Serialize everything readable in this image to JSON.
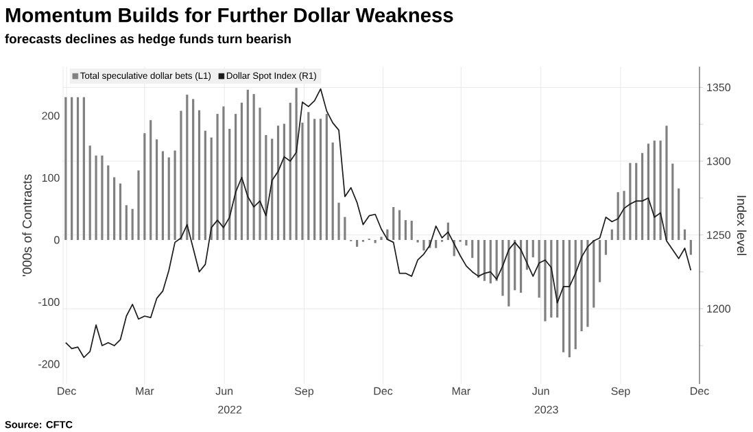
{
  "chart_data": {
    "type": "bar",
    "title": "Momentum Builds for Further Dollar Weakness",
    "subtitle": "forecasts declines as hedge funds turn bearish",
    "ylabel": "'000s of Contracts",
    "y2label": "Index level",
    "annotations": [
      "Source: CFTC",
      "2022",
      "2023"
    ],
    "x": [
      "2021-11-30",
      "2021-12-07",
      "2021-12-14",
      "2021-12-21",
      "2021-12-28",
      "2022-01-04",
      "2022-01-11",
      "2022-01-18",
      "2022-01-25",
      "2022-02-01",
      "2022-02-08",
      "2022-02-15",
      "2022-02-22",
      "2022-03-01",
      "2022-03-08",
      "2022-03-15",
      "2022-03-22",
      "2022-03-29",
      "2022-04-05",
      "2022-04-12",
      "2022-04-19",
      "2022-04-26",
      "2022-05-03",
      "2022-05-10",
      "2022-05-17",
      "2022-05-24",
      "2022-05-31",
      "2022-06-07",
      "2022-06-14",
      "2022-06-21",
      "2022-06-28",
      "2022-07-05",
      "2022-07-12",
      "2022-07-19",
      "2022-07-26",
      "2022-08-02",
      "2022-08-09",
      "2022-08-16",
      "2022-08-23",
      "2022-08-30",
      "2022-09-06",
      "2022-09-13",
      "2022-09-20",
      "2022-09-27",
      "2022-10-04",
      "2022-10-11",
      "2022-10-18",
      "2022-10-25",
      "2022-11-01",
      "2022-11-08",
      "2022-11-15",
      "2022-11-22",
      "2022-11-29",
      "2022-12-06",
      "2022-12-13",
      "2022-12-20",
      "2022-12-27",
      "2023-01-03",
      "2023-01-10",
      "2023-01-17",
      "2023-01-24",
      "2023-01-31",
      "2023-02-07",
      "2023-02-14",
      "2023-02-21",
      "2023-02-28",
      "2023-03-07",
      "2023-03-14",
      "2023-03-21",
      "2023-03-28",
      "2023-04-04",
      "2023-04-11",
      "2023-04-18",
      "2023-04-25",
      "2023-05-02",
      "2023-05-09",
      "2023-05-16",
      "2023-05-23",
      "2023-05-30",
      "2023-06-06",
      "2023-06-13",
      "2023-06-20",
      "2023-06-27",
      "2023-07-04",
      "2023-07-11",
      "2023-07-18",
      "2023-07-25",
      "2023-08-01",
      "2023-08-08",
      "2023-08-15",
      "2023-08-22",
      "2023-08-29",
      "2023-09-05",
      "2023-09-12",
      "2023-09-19",
      "2023-09-26",
      "2023-10-03",
      "2023-10-10",
      "2023-10-17",
      "2023-10-24",
      "2023-10-31",
      "2023-11-07",
      "2023-11-14",
      "2023-11-21"
    ],
    "series": [
      {
        "name": "Total speculative dollar bets  (L1)",
        "color": "#808080",
        "values": [
          230,
          230,
          230,
          230,
          152,
          136,
          136,
          120,
          101,
          91,
          56,
          50,
          112,
          172,
          193,
          162,
          143,
          133,
          144,
          208,
          234,
          227,
          209,
          176,
          165,
          203,
          215,
          179,
          203,
          221,
          242,
          235,
          213,
          169,
          163,
          184,
          187,
          221,
          245,
          189,
          206,
          195,
          195,
          203,
          157,
          60,
          37,
          -2,
          -11,
          -3,
          2,
          -5,
          5,
          17,
          53,
          48,
          32,
          31,
          -4,
          -17,
          -13,
          -13,
          -3,
          28,
          -26,
          -3,
          -9,
          -29,
          -61,
          -66,
          -70,
          -66,
          -90,
          -107,
          -81,
          -85,
          -48,
          -28,
          -93,
          -131,
          -125,
          -125,
          -181,
          -189,
          -176,
          -147,
          -140,
          -109,
          -68,
          -24,
          17,
          77,
          79,
          124,
          124,
          140,
          155,
          160,
          160,
          184,
          123,
          83,
          17,
          -24
        ]
      },
      {
        "name": "Dollar Spot Index (R1)",
        "type": "line",
        "axis": "y2",
        "color": "#1c1c1c",
        "values": [
          1177,
          1173,
          1174,
          1167,
          1171,
          1189,
          1175,
          1177,
          1175,
          1179,
          1195,
          1203,
          1193,
          1195,
          1194,
          1207,
          1212,
          1226,
          1245,
          1248,
          1257,
          1241,
          1225,
          1230,
          1255,
          1260,
          1255,
          1262,
          1279,
          1289,
          1276,
          1269,
          1273,
          1263,
          1287,
          1293,
          1303,
          1300,
          1306,
          1340,
          1337,
          1341,
          1349,
          1334,
          1326,
          1321,
          1276,
          1282,
          1272,
          1257,
          1263,
          1264,
          1254,
          1247,
          1245,
          1224,
          1224,
          1222,
          1233,
          1237,
          1243,
          1256,
          1248,
          1252,
          1244,
          1236,
          1229,
          1225,
          1222,
          1224,
          1225,
          1220,
          1229,
          1240,
          1245,
          1240,
          1231,
          1222,
          1231,
          1233,
          1228,
          1204,
          1215,
          1215,
          1224,
          1235,
          1242,
          1246,
          1248,
          1262,
          1259,
          1261,
          1268,
          1271,
          1273,
          1273,
          1275,
          1262,
          1265,
          1246,
          1240,
          1234,
          1241,
          1226
        ]
      }
    ],
    "xlim": [
      "2021-11-27",
      "2023-12-01"
    ],
    "xticks": [
      {
        "value": "2021-12-01",
        "label": "Dec"
      },
      {
        "value": "2022-03-01",
        "label": "Mar"
      },
      {
        "value": "2022-06-01",
        "label": "Jun"
      },
      {
        "value": "2022-09-01",
        "label": "Sep"
      },
      {
        "value": "2022-12-01",
        "label": "Dec"
      },
      {
        "value": "2023-03-01",
        "label": "Mar"
      },
      {
        "value": "2023-06-01",
        "label": "Jun"
      },
      {
        "value": "2023-09-01",
        "label": "Sep"
      },
      {
        "value": "2023-12-01",
        "label": "Dec"
      }
    ],
    "ylim": [
      -232,
      279
    ],
    "yticks": [
      -200,
      -100,
      0,
      100,
      200
    ],
    "y2lim": [
      1149,
      1364
    ],
    "y2ticks": [
      {
        "value": 1175,
        "label": null
      },
      1200,
      {
        "value": 1225,
        "label": null
      },
      1250,
      {
        "value": 1275,
        "label": null
      },
      1300,
      {
        "value": 1325,
        "label": null
      },
      1350
    ],
    "grid": true,
    "legend": "top left",
    "marker": "none"
  }
}
